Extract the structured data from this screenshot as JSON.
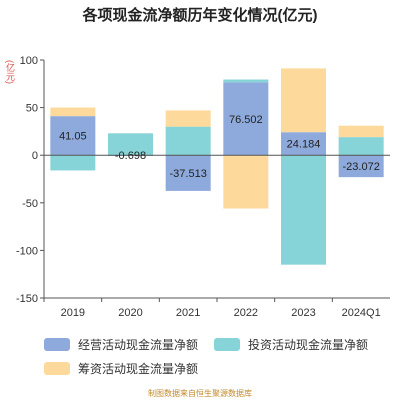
{
  "chart_data": {
    "type": "bar",
    "stacked": true,
    "title": "各项现金流净额历年变化情况(亿元)",
    "unit": "(亿元)",
    "categories": [
      "2019",
      "2020",
      "2021",
      "2022",
      "2023",
      "2024Q1"
    ],
    "ylim": [
      -150,
      100
    ],
    "yticks": [
      100,
      50,
      0,
      -50,
      -100,
      -150
    ],
    "series": [
      {
        "name": "经营活动现金流量净额",
        "color": "#8eaadc",
        "values": [
          41.05,
          -0.698,
          -37.513,
          76.502,
          24.184,
          -23.072
        ]
      },
      {
        "name": "投资活动现金流量净额",
        "color": "#86d4d8",
        "values": [
          -16,
          23,
          30,
          3,
          -115,
          19
        ]
      },
      {
        "name": "筹资活动现金流量净额",
        "color": "#fdd99b",
        "values": [
          9,
          0,
          17,
          -56,
          67,
          12
        ]
      }
    ],
    "data_labels": [
      {
        "category": "2019",
        "text": "41.05"
      },
      {
        "category": "2020",
        "text": "-0.698"
      },
      {
        "category": "2021",
        "text": "-37.513"
      },
      {
        "category": "2022",
        "text": "76.502"
      },
      {
        "category": "2023",
        "text": "24.184"
      },
      {
        "category": "2024Q1",
        "text": "-23.072"
      }
    ],
    "legend_position": "bottom"
  },
  "footer": "制图数据来自恒生聚源数据库"
}
